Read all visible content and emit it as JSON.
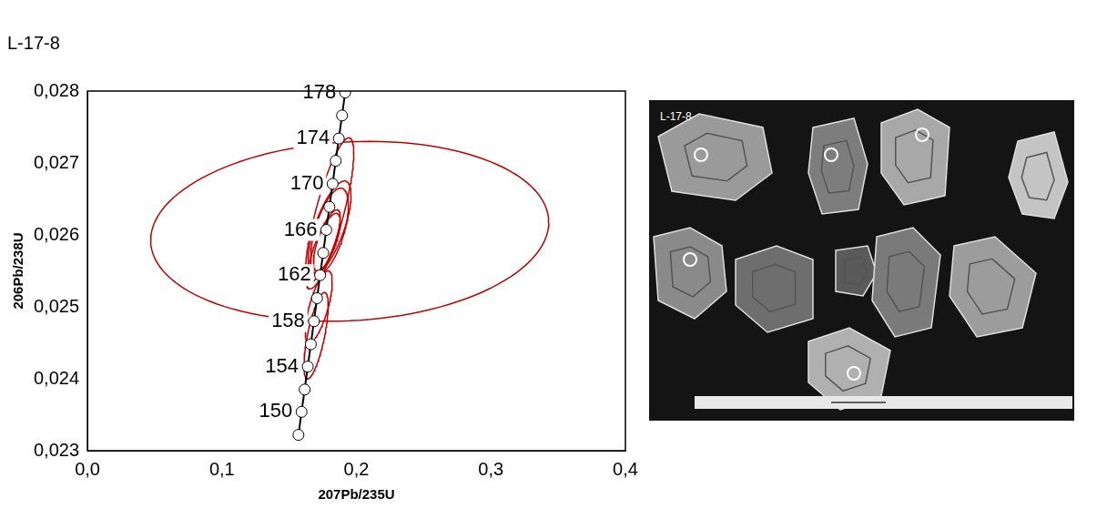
{
  "chart_data": {
    "type": "concordia",
    "title": "L-17-8",
    "x_label": "207Pb/235U",
    "y_label": "206Pb/238U",
    "xlim": [
      0,
      0.4
    ],
    "xticks": [
      {
        "value": 0,
        "label": "0,0"
      },
      {
        "value": 0.1,
        "label": "0,1"
      },
      {
        "value": 0.2,
        "label": "0,2"
      },
      {
        "value": 0.3,
        "label": "0,3"
      },
      {
        "value": 0.4,
        "label": "0,4"
      }
    ],
    "ylim": [
      0.023,
      0.028
    ],
    "yticks": [
      {
        "value": 0.023,
        "label": "0,023"
      },
      {
        "value": 0.024,
        "label": "0,024"
      },
      {
        "value": 0.025,
        "label": "0,025"
      },
      {
        "value": 0.026,
        "label": "0,026"
      },
      {
        "value": 0.027,
        "label": "0,027"
      },
      {
        "value": 0.028,
        "label": "0,028"
      }
    ],
    "grid": false,
    "concordia": {
      "color": "#000000",
      "marker": "circle",
      "x": [
        0.1569,
        0.1592,
        0.1615,
        0.1638,
        0.1661,
        0.1684,
        0.1707,
        0.173,
        0.1753,
        0.1776,
        0.1799,
        0.1823,
        0.1846,
        0.1869,
        0.1893,
        0.1916
      ],
      "y": [
        0.02322,
        0.02354,
        0.02385,
        0.02417,
        0.02448,
        0.0248,
        0.02512,
        0.02544,
        0.02575,
        0.02607,
        0.02639,
        0.02671,
        0.02703,
        0.02734,
        0.02766,
        0.02798
      ],
      "age_labels": [
        null,
        150,
        null,
        154,
        null,
        158,
        null,
        162,
        null,
        166,
        null,
        170,
        null,
        174,
        null,
        178
      ]
    },
    "ellipses": {
      "color": "#c00000",
      "x": [
        0.195,
        0.176,
        0.178,
        0.18,
        0.18,
        0.18,
        0.17,
        0.172
      ],
      "y": [
        0.02605,
        0.02585,
        0.0259,
        0.02605,
        0.0263,
        0.0261,
        0.0246,
        0.025
      ],
      "x_err": [
        0.148,
        0.012,
        0.01,
        0.014,
        0.018,
        0.016,
        0.009,
        0.01
      ],
      "y_err": [
        0.00125,
        0.0005,
        0.0004,
        0.0006,
        0.00105,
        0.00065,
        0.0006,
        0.0005
      ],
      "rho": [
        0.1,
        0.8,
        0.7,
        0.6,
        0.8,
        0.7,
        0.7,
        0.7
      ]
    }
  },
  "image": {
    "label": "L-17-8"
  }
}
